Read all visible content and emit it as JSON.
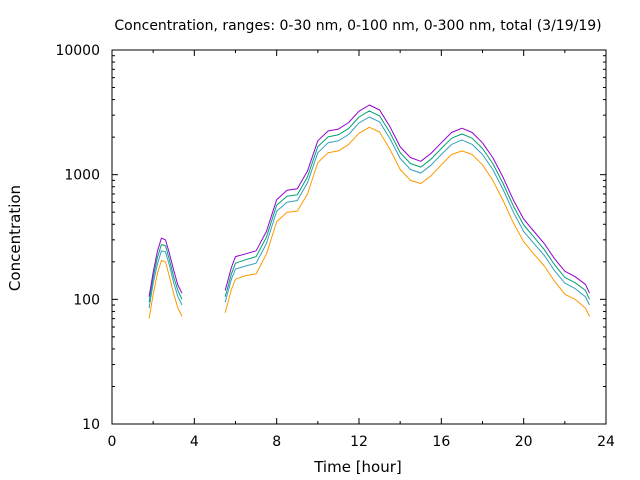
{
  "chart_data": {
    "type": "line",
    "title": "Concentration, ranges: 0-30 nm, 0-100 nm, 0-300 nm, total (3/19/19)",
    "xlabel": "Time [hour]",
    "ylabel": "Concentration",
    "xlim": [
      0,
      24
    ],
    "ylim": [
      10,
      10000
    ],
    "yscale": "log",
    "grid": false,
    "legend": "none",
    "xticks": [
      "0",
      "4",
      "8",
      "12",
      "16",
      "20",
      "24"
    ],
    "yticks": [
      "10",
      "100",
      "1000",
      "10000"
    ],
    "x": [
      1.8,
      2.0,
      2.2,
      2.4,
      2.6,
      2.8,
      3.0,
      3.2,
      3.4,
      null,
      5.5,
      5.8,
      6.0,
      6.5,
      7.0,
      7.5,
      8.0,
      8.5,
      9.0,
      9.5,
      10.0,
      10.5,
      11.0,
      11.5,
      12.0,
      12.5,
      13.0,
      13.5,
      14.0,
      14.5,
      15.0,
      15.5,
      16.0,
      16.5,
      17.0,
      17.5,
      18.0,
      18.5,
      19.0,
      19.5,
      20.0,
      20.5,
      21.0,
      21.5,
      22.0,
      22.5,
      23.0,
      23.2
    ],
    "series": [
      {
        "color": "#ff9900",
        "values": [
          70,
          110,
          160,
          205,
          200,
          150,
          110,
          85,
          73,
          null,
          78,
          120,
          145,
          155,
          160,
          230,
          420,
          500,
          510,
          700,
          1250,
          1500,
          1550,
          1750,
          2150,
          2400,
          2200,
          1600,
          1100,
          900,
          850,
          980,
          1200,
          1450,
          1550,
          1450,
          1200,
          900,
          620,
          410,
          290,
          230,
          185,
          140,
          110,
          100,
          85,
          73
        ]
      },
      {
        "color": "#33a0c0",
        "values": [
          85,
          135,
          190,
          245,
          240,
          185,
          135,
          105,
          90,
          null,
          95,
          145,
          175,
          185,
          195,
          280,
          510,
          600,
          620,
          860,
          1500,
          1800,
          1870,
          2100,
          2600,
          2900,
          2650,
          1950,
          1350,
          1100,
          1030,
          1190,
          1450,
          1750,
          1900,
          1750,
          1450,
          1100,
          760,
          500,
          350,
          280,
          225,
          170,
          135,
          122,
          105,
          90
        ]
      },
      {
        "color": "#00a070",
        "values": [
          95,
          150,
          215,
          275,
          270,
          205,
          150,
          118,
          100,
          null,
          105,
          160,
          195,
          208,
          220,
          315,
          570,
          670,
          690,
          960,
          1680,
          2010,
          2090,
          2350,
          2900,
          3250,
          2960,
          2180,
          1500,
          1230,
          1150,
          1330,
          1620,
          1960,
          2120,
          1960,
          1620,
          1230,
          850,
          560,
          395,
          315,
          250,
          190,
          150,
          136,
          118,
          100
        ]
      },
      {
        "color": "#9400d3",
        "values": [
          105,
          165,
          240,
          310,
          300,
          230,
          170,
          130,
          112,
          null,
          118,
          180,
          220,
          232,
          245,
          350,
          630,
          750,
          770,
          1070,
          1870,
          2240,
          2320,
          2620,
          3230,
          3620,
          3300,
          2430,
          1670,
          1370,
          1280,
          1480,
          1800,
          2180,
          2360,
          2180,
          1800,
          1370,
          950,
          625,
          440,
          350,
          280,
          212,
          168,
          152,
          132,
          112
        ]
      }
    ]
  }
}
